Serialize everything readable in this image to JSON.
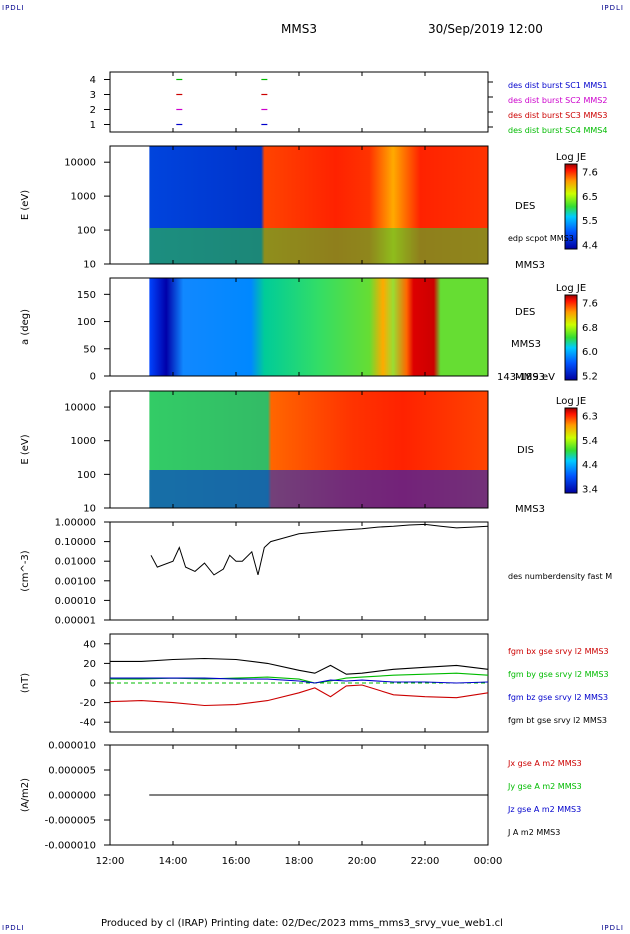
{
  "corner_label": "IPDLI",
  "header": {
    "spacecraft": "MMS3",
    "datetime": "30/Sep/2019 12:00"
  },
  "footer": {
    "text": "Produced by cl (IRAP)   Printing date: 02/Dec/2023   mms_mms3_srvy_vue_web1.cl"
  },
  "time_axis": {
    "ticks": [
      "12:00",
      "14:00",
      "16:00",
      "18:00",
      "20:00",
      "22:00",
      "00:00"
    ],
    "range_hours": [
      12,
      24
    ],
    "data_start_hour": 13.25
  },
  "panels": {
    "availability": {
      "yticks": [
        "4",
        "3",
        "2",
        "1"
      ],
      "legend": [
        {
          "text": "des dist burst SC1 MMS1",
          "color": "#0000cc"
        },
        {
          "text": "des dist burst SC2 MMS2",
          "color": "#cc00cc"
        },
        {
          "text": "des dist burst SC3 MMS3",
          "color": "#cc0000"
        },
        {
          "text": "des dist burst SC4 MMS4",
          "color": "#00bb00"
        }
      ],
      "bursts": [
        {
          "sc": 4,
          "color": "#00bb00",
          "hours": [
            14.2,
            16.9
          ]
        },
        {
          "sc": 3,
          "color": "#cc0000",
          "hours": [
            14.2,
            16.9
          ]
        },
        {
          "sc": 2,
          "color": "#cc00cc",
          "hours": [
            14.2,
            16.9
          ]
        },
        {
          "sc": 1,
          "color": "#0000cc",
          "hours": [
            14.2,
            16.9
          ]
        }
      ]
    },
    "des_energy": {
      "ylabel": "E (eV)",
      "yticks": [
        "10000",
        "1000",
        "100",
        "10"
      ],
      "label": "DES",
      "overlay_label": "edp scpot MMS3",
      "sc_label": "MMS3",
      "cbar_title": "Log JE",
      "cbar_ticks": [
        "7.6",
        "6.5",
        "5.5",
        "4.4"
      ]
    },
    "des_pitch": {
      "ylabel": "a (deg)",
      "yticks": [
        "150",
        "100",
        "50",
        "0"
      ],
      "label": "DES",
      "sc_label": "MMS3",
      "energy_label": "143-189 eV",
      "cbar_title": "Log JE",
      "cbar_ticks": [
        "7.6",
        "6.8",
        "6.0",
        "5.2"
      ]
    },
    "dis_energy": {
      "ylabel": "E (eV)",
      "yticks": [
        "10000",
        "1000",
        "100",
        "10"
      ],
      "label": "DIS",
      "sc_label": "MMS3",
      "cbar_title": "Log JE",
      "cbar_ticks": [
        "6.3",
        "5.4",
        "4.4",
        "3.4"
      ]
    },
    "density": {
      "ylabel": "(cm^-3)",
      "yticks": [
        "1.00000",
        "0.10000",
        "0.01000",
        "0.00100",
        "0.00010",
        "0.00001"
      ],
      "legend": "des numberdensity fast M"
    },
    "bfield": {
      "ylabel": "(nT)",
      "yticks": [
        "40",
        "20",
        "0",
        "-20",
        "-40"
      ],
      "legend": [
        {
          "text": "fgm bx gse srvy l2 MMS3",
          "color": "#cc0000"
        },
        {
          "text": "fgm by gse srvy l2 MMS3",
          "color": "#00bb00"
        },
        {
          "text": "fgm bz gse srvy l2 MMS3",
          "color": "#0000cc"
        },
        {
          "text": "fgm bt gse srvy l2 MMS3",
          "color": "#000000"
        }
      ]
    },
    "current": {
      "ylabel": "(A/m2)",
      "yticks": [
        "0.000010",
        "0.000005",
        "0.000000",
        "-0.000005",
        "-0.000010"
      ],
      "legend": [
        {
          "text": "Jx gse A m2 MMS3",
          "color": "#cc0000"
        },
        {
          "text": "Jy gse A m2 MMS3",
          "color": "#00bb00"
        },
        {
          "text": "Jz gse A m2 MMS3",
          "color": "#0000cc"
        },
        {
          "text": "J A m2 MMS3",
          "color": "#000000"
        }
      ]
    }
  },
  "chart_data": [
    {
      "type": "line",
      "name": "availability",
      "ylim": [
        0.5,
        4.5
      ],
      "series": [
        {
          "name": "des dist burst SC1 MMS1",
          "color": "#0000cc",
          "x": [
            14.2,
            16.9
          ],
          "y": [
            1,
            1
          ]
        },
        {
          "name": "des dist burst SC2 MMS2",
          "color": "#cc00cc",
          "x": [
            14.2,
            16.9
          ],
          "y": [
            2,
            2
          ]
        },
        {
          "name": "des dist burst SC3 MMS3",
          "color": "#cc0000",
          "x": [
            14.2,
            16.9
          ],
          "y": [
            3,
            3
          ]
        },
        {
          "name": "des dist burst SC4 MMS4",
          "color": "#00bb00",
          "x": [
            14.2,
            16.9
          ],
          "y": [
            4,
            4
          ]
        }
      ]
    },
    {
      "type": "heatmap",
      "name": "DES energy spectrogram",
      "ylabel": "E (eV)",
      "ylim": [
        10,
        30000
      ],
      "yscale": "log",
      "colorbar": {
        "title": "Log JE",
        "range": [
          4.4,
          7.6
        ]
      },
      "x": [
        13.25,
        14,
        15,
        16,
        16.9,
        17.5,
        18,
        19,
        20,
        21,
        22,
        23,
        24
      ],
      "peak_energy_eV": [
        null,
        null,
        null,
        null,
        1000,
        800,
        900,
        1000,
        900,
        1100,
        1500,
        1200,
        1200
      ],
      "peak_logJE": [
        4.6,
        4.7,
        4.6,
        4.8,
        6.2,
        7.2,
        7.4,
        7.5,
        7.4,
        7.3,
        7.4,
        7.3,
        7.1
      ]
    },
    {
      "type": "heatmap",
      "name": "DES pitch angle",
      "ylabel": "a (deg)",
      "ylim": [
        0,
        180
      ],
      "energy": "143-189 eV",
      "colorbar": {
        "title": "Log JE",
        "range": [
          5.2,
          7.6
        ]
      },
      "x": [
        13.25,
        14,
        15,
        16,
        17,
        18,
        19,
        20,
        21,
        21.5,
        22,
        22.5,
        23,
        24
      ],
      "logJE": [
        5.4,
        5.3,
        5.6,
        5.5,
        6.0,
        5.9,
        6.3,
        6.5,
        6.7,
        7.4,
        7.5,
        6.8,
        6.6,
        6.5
      ]
    },
    {
      "type": "heatmap",
      "name": "DIS energy spectrogram",
      "ylabel": "E (eV)",
      "ylim": [
        10,
        30000
      ],
      "yscale": "log",
      "colorbar": {
        "title": "Log JE",
        "range": [
          3.4,
          6.3
        ]
      },
      "x": [
        13.25,
        14,
        15,
        16,
        16.9,
        18,
        19,
        20,
        21,
        22,
        23,
        24
      ],
      "peak_energy_eV": [
        null,
        null,
        null,
        null,
        5000,
        5000,
        6000,
        5000,
        6000,
        4000,
        5000,
        5000
      ],
      "peak_logJE": [
        4.2,
        4.3,
        4.4,
        4.6,
        5.6,
        6.0,
        6.2,
        6.2,
        6.1,
        6.2,
        6.3,
        6.2
      ]
    },
    {
      "type": "line",
      "name": "des numberdensity",
      "ylabel": "(cm^-3)",
      "ylim": [
        1e-05,
        1.0
      ],
      "yscale": "log",
      "series": [
        {
          "name": "des numberdensity fast M",
          "color": "#000000",
          "x": [
            13.3,
            13.5,
            14.0,
            14.2,
            14.4,
            14.7,
            15.0,
            15.3,
            15.6,
            15.8,
            16.0,
            16.2,
            16.5,
            16.7,
            16.9,
            17.1,
            17.5,
            18.0,
            18.5,
            19.0,
            19.5,
            20.0,
            20.5,
            21.0,
            21.5,
            22.0,
            22.5,
            23.0,
            23.5,
            24.0
          ],
          "y": [
            0.02,
            0.005,
            0.01,
            0.05,
            0.005,
            0.003,
            0.008,
            0.002,
            0.004,
            0.02,
            0.01,
            0.01,
            0.03,
            0.002,
            0.05,
            0.1,
            0.15,
            0.25,
            0.3,
            0.35,
            0.4,
            0.45,
            0.55,
            0.6,
            0.7,
            0.75,
            0.6,
            0.5,
            0.55,
            0.6
          ]
        }
      ]
    },
    {
      "type": "line",
      "name": "fgm B gse",
      "ylabel": "(nT)",
      "ylim": [
        -50,
        50
      ],
      "x": [
        12.0,
        13.0,
        14.0,
        15.0,
        16.0,
        17.0,
        18.0,
        18.5,
        19.0,
        19.5,
        20.0,
        21.0,
        22.0,
        23.0,
        24.0
      ],
      "series": [
        {
          "name": "fgm bx gse srvy l2 MMS3",
          "color": "#cc0000",
          "y": [
            -19,
            -18,
            -20,
            -23,
            -22,
            -18,
            -10,
            -5,
            -14,
            -3,
            -2,
            -12,
            -14,
            -15,
            -10
          ]
        },
        {
          "name": "fgm by gse srvy l2 MMS3",
          "color": "#00bb00",
          "y": [
            4,
            4,
            5,
            4,
            5,
            6,
            4,
            0,
            2,
            5,
            6,
            8,
            9,
            10,
            8
          ]
        },
        {
          "name": "fgm bz gse srvy l2 MMS3",
          "color": "#0000cc",
          "y": [
            5,
            5,
            5,
            5,
            4,
            4,
            2,
            0,
            3,
            2,
            3,
            1,
            1,
            0,
            1
          ]
        },
        {
          "name": "fgm bt gse srvy l2 MMS3",
          "color": "#000000",
          "y": [
            22,
            22,
            24,
            25,
            24,
            20,
            13,
            10,
            18,
            9,
            10,
            14,
            16,
            18,
            14
          ]
        }
      ]
    },
    {
      "type": "line",
      "name": "J gse",
      "ylabel": "(A/m2)",
      "ylim": [
        -1e-05,
        1e-05
      ],
      "x": [
        13.25,
        24.0
      ],
      "series": [
        {
          "name": "Jx gse A m2 MMS3",
          "color": "#cc0000",
          "y": [
            0,
            0
          ]
        },
        {
          "name": "Jy gse A m2 MMS3",
          "color": "#00bb00",
          "y": [
            0,
            0
          ]
        },
        {
          "name": "Jz gse A m2 MMS3",
          "color": "#0000cc",
          "y": [
            0,
            0
          ]
        },
        {
          "name": "J A m2 MMS3",
          "color": "#000000",
          "y": [
            0,
            0
          ]
        }
      ]
    }
  ]
}
